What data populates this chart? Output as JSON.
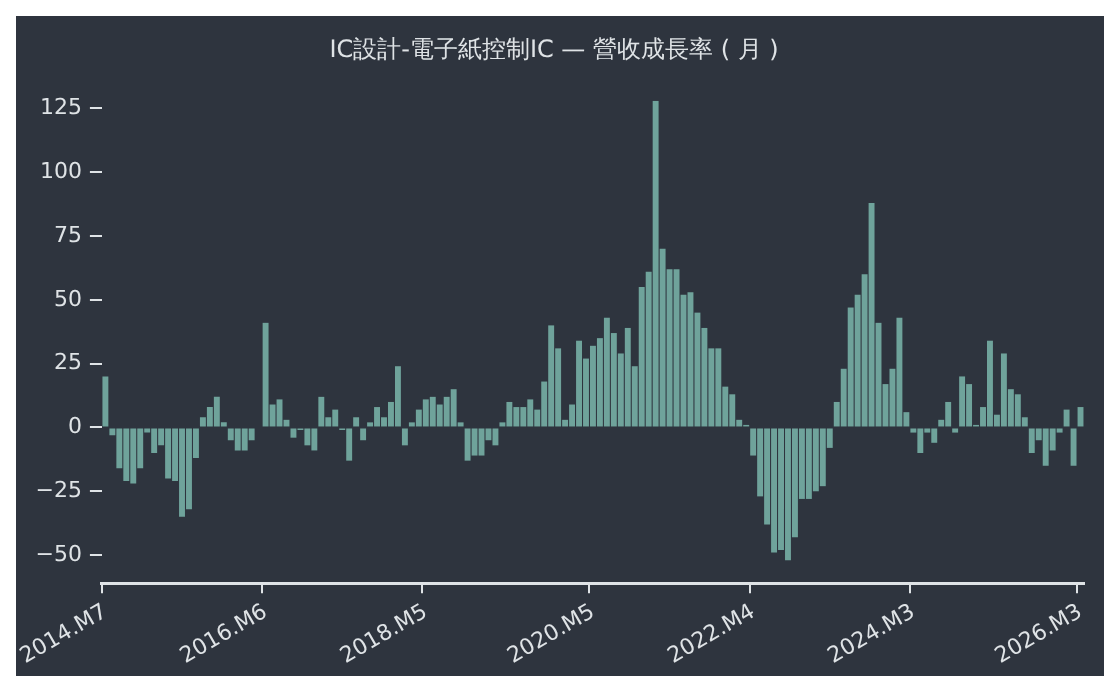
{
  "chart_data": {
    "type": "bar",
    "title": "IC設計-電子紙控制IC — 營收成長率 ( 月 )",
    "categories": [
      "2014.M7",
      null,
      null,
      null,
      null,
      null,
      null,
      null,
      null,
      null,
      null,
      null,
      null,
      null,
      null,
      null,
      null,
      null,
      null,
      null,
      null,
      null,
      null,
      "2016.M6",
      null,
      null,
      null,
      null,
      null,
      null,
      null,
      null,
      null,
      null,
      null,
      null,
      null,
      null,
      null,
      null,
      null,
      null,
      null,
      null,
      null,
      null,
      "2018.M5",
      null,
      null,
      null,
      null,
      null,
      null,
      null,
      null,
      null,
      null,
      null,
      null,
      null,
      null,
      null,
      null,
      null,
      null,
      null,
      null,
      null,
      null,
      null,
      "2020.M5",
      null,
      null,
      null,
      null,
      null,
      null,
      null,
      null,
      null,
      null,
      null,
      null,
      null,
      null,
      null,
      null,
      null,
      null,
      null,
      null,
      null,
      null,
      "2022.M4",
      null,
      null,
      null,
      null,
      null,
      null,
      null,
      null,
      null,
      null,
      null,
      null,
      null,
      null,
      null,
      null,
      null,
      null,
      null,
      null,
      null,
      null,
      "2024.M3",
      null,
      null,
      null,
      null,
      null,
      null,
      null,
      null,
      null,
      null,
      null,
      null,
      null,
      null,
      null,
      null,
      null,
      null,
      null,
      null,
      null,
      null,
      null,
      "2026.M3"
    ],
    "values": [
      20,
      -3,
      -16,
      -21,
      -22,
      -16,
      -2,
      -10,
      -7,
      -20,
      -21,
      -35,
      -32,
      -12,
      4,
      8,
      12,
      2,
      -5,
      -9,
      -9,
      -5,
      0,
      41,
      9,
      11,
      3,
      -4,
      -1,
      -7,
      -9,
      12,
      4,
      7,
      -1,
      -13,
      4,
      -5,
      2,
      8,
      4,
      10,
      24,
      -7,
      2,
      7,
      11,
      12,
      9,
      12,
      15,
      2,
      -13,
      -11,
      -11,
      -5,
      -7,
      2,
      10,
      8,
      8,
      11,
      7,
      18,
      40,
      31,
      3,
      9,
      34,
      27,
      32,
      35,
      43,
      37,
      29,
      39,
      24,
      55,
      61,
      128,
      70,
      62,
      62,
      52,
      53,
      45,
      39,
      31,
      31,
      16,
      13,
      3,
      1,
      -11,
      -27,
      -38,
      -49,
      -48,
      -52,
      -43,
      -28,
      -28,
      -25,
      -23,
      -8,
      10,
      23,
      47,
      52,
      60,
      88,
      41,
      17,
      23,
      43,
      6,
      -2,
      -10,
      -2,
      -6,
      3,
      10,
      -2,
      20,
      17,
      1,
      8,
      34,
      5,
      29,
      15,
      13,
      4,
      -10,
      -5,
      -15,
      -9,
      -2,
      7,
      -15,
      8
    ],
    "color": "#6fa39b",
    "ylim": [
      -61,
      128
    ],
    "yticks": [
      -50,
      -25,
      0,
      25,
      50,
      75,
      100,
      125
    ]
  }
}
